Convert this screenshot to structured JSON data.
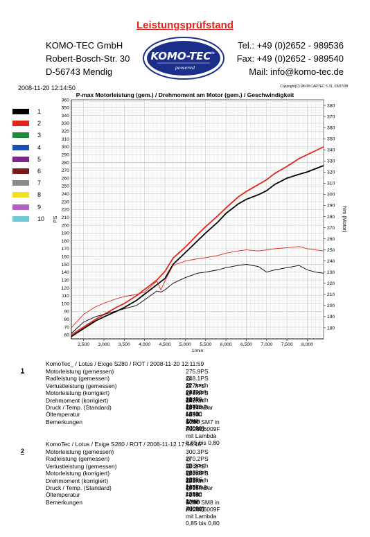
{
  "header": {
    "title": "Leistungsprüfstand",
    "company": [
      "KOMO-TEC GmbH",
      "Robert-Bosch-Str. 30",
      "D-56743 Mendig"
    ],
    "contact": [
      "Tel.: +49 (0)2652 - 989536",
      "Fax: +49 (0)2652 - 989540",
      "Mail: info@komo-tec.de"
    ],
    "logo_main": "KOMO-TEC",
    "logo_sub": "powered",
    "logo_de": ".de",
    "datetime": "2008-11-20 12:14:50",
    "copyright": "Copyright(C) 98-08 CARTEC 5.31, 03/07/08"
  },
  "legend": [
    {
      "label": "1",
      "color": "#000000"
    },
    {
      "label": "2",
      "color": "#e0261b"
    },
    {
      "label": "3",
      "color": "#1f8a3a"
    },
    {
      "label": "4",
      "color": "#1f4fb0"
    },
    {
      "label": "5",
      "color": "#7a2a8a"
    },
    {
      "label": "6",
      "color": "#7a1a1a"
    },
    {
      "label": "7",
      "color": "#8a8a8a"
    },
    {
      "label": "8",
      "color": "#f0e020"
    },
    {
      "label": "9",
      "color": "#b060c0"
    },
    {
      "label": "10",
      "color": "#70c8d8"
    }
  ],
  "chart_data": {
    "type": "line",
    "title": "P-max Motorleistung (gem.) / Drehmoment am Motor (gem.) / Geschwindigkeit",
    "xlabel": "1/min",
    "ylabel_left": "PS",
    "ylabel_right": "Nm (Motor)",
    "xlim": [
      2200,
      8400
    ],
    "ylim_left": [
      55,
      360
    ],
    "ylim_right": [
      170,
      385
    ],
    "x_ticks": [
      "2,500",
      "3,000",
      "3,500",
      "4,000",
      "4,500",
      "5,000",
      "5,500",
      "6,000",
      "6,500",
      "7,000",
      "7,500",
      "8,000"
    ],
    "x_tick_values": [
      2500,
      3000,
      3500,
      4000,
      4500,
      5000,
      5500,
      6000,
      6500,
      7000,
      7500,
      8000
    ],
    "y_left_ticks": [
      60,
      70,
      80,
      90,
      100,
      110,
      120,
      130,
      140,
      150,
      160,
      170,
      180,
      190,
      200,
      210,
      220,
      230,
      240,
      250,
      260,
      270,
      280,
      290,
      300,
      310,
      320,
      330,
      340,
      350,
      360
    ],
    "y_right_ticks": [
      180,
      190,
      200,
      210,
      220,
      230,
      240,
      250,
      260,
      270,
      280,
      290,
      300,
      310,
      320,
      330,
      340,
      350,
      360,
      370,
      380
    ],
    "grid": true,
    "series": [
      {
        "name": "1",
        "kind": "power",
        "axis": "left",
        "color": "#000000",
        "x": [
          2200,
          2500,
          2800,
          3000,
          3300,
          3500,
          3800,
          4000,
          4300,
          4500,
          4700,
          5000,
          5300,
          5500,
          5800,
          6000,
          6300,
          6500,
          6800,
          7000,
          7200,
          7500,
          7800,
          8000,
          8200,
          8400
        ],
        "y": [
          58,
          68,
          78,
          83,
          90,
          95,
          104,
          112,
          124,
          132,
          150,
          165,
          180,
          190,
          204,
          215,
          227,
          233,
          239,
          244,
          252,
          260,
          265,
          268,
          272,
          276
        ]
      },
      {
        "name": "2",
        "kind": "power",
        "axis": "left",
        "color": "#e0261b",
        "x": [
          2200,
          2500,
          2800,
          3000,
          3300,
          3500,
          3800,
          4000,
          4300,
          4500,
          4700,
          5000,
          5300,
          5500,
          5800,
          6000,
          6300,
          6500,
          6800,
          7000,
          7200,
          7500,
          7800,
          8000,
          8200,
          8400
        ],
        "y": [
          60,
          70,
          80,
          86,
          95,
          100,
          110,
          118,
          130,
          141,
          158,
          172,
          188,
          198,
          212,
          222,
          236,
          243,
          252,
          258,
          266,
          275,
          285,
          290,
          295,
          300
        ]
      },
      {
        "name": "1",
        "kind": "torque",
        "axis": "right",
        "color": "#000000",
        "x": [
          2200,
          2500,
          2800,
          3000,
          3300,
          3500,
          3800,
          4000,
          4300,
          4400,
          4500,
          4700,
          5000,
          5300,
          5500,
          5800,
          6000,
          6300,
          6500,
          6800,
          7000,
          7200,
          7500,
          7800,
          8000,
          8200,
          8400
        ],
        "y": [
          175,
          185,
          190,
          192,
          195,
          197,
          200,
          205,
          213,
          212,
          214,
          220,
          225,
          229,
          230,
          232,
          234,
          236,
          237,
          235,
          230,
          232,
          234,
          236,
          232,
          230,
          229
        ]
      },
      {
        "name": "2",
        "kind": "torque",
        "axis": "right",
        "color": "#e0261b",
        "x": [
          2200,
          2500,
          2800,
          3000,
          3300,
          3500,
          3800,
          4000,
          4300,
          4400,
          4500,
          4700,
          5000,
          5300,
          5500,
          5800,
          6000,
          6300,
          6500,
          6800,
          7000,
          7200,
          7500,
          7800,
          8000,
          8200,
          8400
        ],
        "y": [
          180,
          192,
          199,
          202,
          206,
          208,
          210,
          212,
          222,
          214,
          222,
          236,
          240,
          242,
          243,
          245,
          247,
          249,
          250,
          249,
          250,
          251,
          252,
          253,
          251,
          250,
          249
        ]
      }
    ]
  },
  "runs": [
    {
      "number": "1",
      "title": "KomoTec_ / Lotus / Exige S280 / ROT / 2008-11-20 12:11:59",
      "rows": [
        {
          "k": "Motorleistung (gemessen)",
          "v": "275.9PS @ 227km/h / 8400 1/min"
        },
        {
          "k": "Radleistung (gemessen)",
          "v": "248.1PS @ 227km/h / 8400 1/min"
        },
        {
          "k": "Verlustleistung (gemessen)",
          "v": "27.7PS @ 227km/h / 8400 1/min"
        },
        {
          "k": "Motorleistung (korrigiert)",
          "v": "278.6PS @ 227km/h / 8400 1/min"
        },
        {
          "k": "Drehmoment (korrigiert)",
          "v": "240Nm @ 6585 1/min (Motor)"
        },
        {
          "k": "Druck / Temp. (Standard)",
          "v": "1014mBar / 26°C   (DIN 70020)"
        },
        {
          "k": "Öltemperatur",
          "v": "--"
        },
        {
          "k": "Bemerkungen",
          "v": "S280 SM7 in A128E6009F mit Lambda 0,85 bis 0,80"
        }
      ]
    },
    {
      "number": "2",
      "title": "KomoTec / Lotus / Exige S280 / ROT / 2008-11-12 17:56:46",
      "rows": [
        {
          "k": "Motorleistung (gemessen)",
          "v": "300.3PS @ 226km/h / 8386 1/min"
        },
        {
          "k": "Radleistung (gemessen)",
          "v": "270.2PS @ 226km/h / 8386 1/min"
        },
        {
          "k": "Verlustleistung (gemessen)",
          "v": "30.2PS @ 226km/h / 8386 1/min"
        },
        {
          "k": "Motorleistung (korrigiert)",
          "v": "302.5PS @ 226km/h / 8386 1/min"
        },
        {
          "k": "Drehmoment (korrigiert)",
          "v": "258Nm @ 7748 1/min (Motor)"
        },
        {
          "k": "Druck / Temp. (Standard)",
          "v": "1015mBar / 26°C   (DIN 70020)"
        },
        {
          "k": "Öltemperatur",
          "v": "--"
        },
        {
          "k": "Bemerkungen",
          "v": "S280 SM8 in A128E6009F mit Lambda 0,85 bis 0,80"
        }
      ]
    }
  ]
}
